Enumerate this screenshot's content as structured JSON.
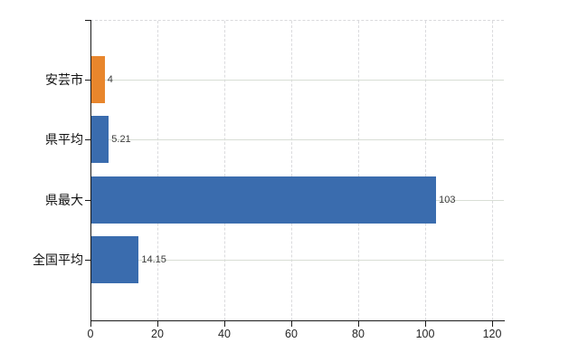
{
  "chart_data": {
    "type": "bar",
    "orientation": "horizontal",
    "title": "",
    "xlabel": "",
    "ylabel": "",
    "categories": [
      "安芸市",
      "県平均",
      "県最大",
      "全国平均"
    ],
    "values": [
      4,
      5.21,
      103,
      14.15
    ],
    "value_labels": [
      "4",
      "5.21",
      "103",
      "14.15"
    ],
    "bar_colors": [
      "#e8862c",
      "#3a6cae",
      "#3a6cae",
      "#3a6cae"
    ],
    "xlim": [
      0,
      120
    ],
    "x_ticks": [
      0,
      20,
      40,
      60,
      80,
      100,
      120
    ],
    "x_tick_labels": [
      "0",
      "20",
      "40",
      "60",
      "80",
      "100",
      "120"
    ],
    "grid": "on",
    "legend": "none"
  },
  "colors": {
    "highlight_orange": "#e8862c",
    "series_blue": "#3a6cae",
    "axis": "#1a1a1a",
    "grid_horizontal": "#d8ded5",
    "grid_vertical": "#dbdbde",
    "background": "#ffffff"
  }
}
